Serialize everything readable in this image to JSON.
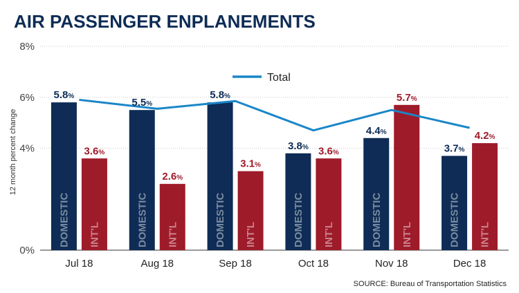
{
  "title": "AIR PASSENGER ENPLANEMENTS",
  "source": "SOURCE: Bureau of Transportation Statistics",
  "colors": {
    "domestic": "#0e2c55",
    "intl": "#9e1b2a",
    "total": "#1a86c8",
    "title": "#0e2c55"
  },
  "chart_data": {
    "type": "bar",
    "categories": [
      "Jul 18",
      "Aug 18",
      "Sep 18",
      "Oct 18",
      "Nov 18",
      "Dec 18"
    ],
    "ylabel": "12 month percent change",
    "ylim": [
      0,
      8
    ],
    "yticks": [
      0,
      4,
      6,
      8
    ],
    "ytick_labels": [
      "0%",
      "4%",
      "6%",
      "8%"
    ],
    "value_suffix": "%",
    "series": [
      {
        "name": "DOMESTIC",
        "values": [
          5.8,
          5.5,
          5.8,
          3.8,
          4.4,
          3.7
        ]
      },
      {
        "name": "INT'L",
        "values": [
          3.6,
          2.6,
          3.1,
          3.6,
          5.7,
          4.2
        ]
      }
    ],
    "line_series": {
      "name": "Total",
      "values": [
        5.9,
        5.55,
        5.85,
        4.7,
        5.5,
        4.8
      ]
    },
    "legend": "top-center",
    "grid": true
  }
}
